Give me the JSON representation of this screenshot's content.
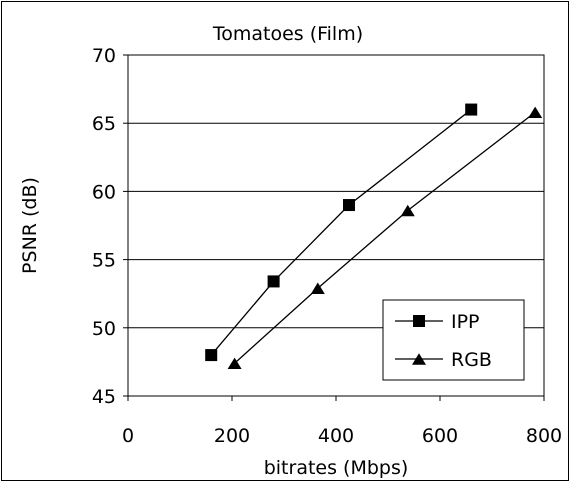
{
  "chart_data": {
    "type": "line",
    "title": "Tomatoes (Film)",
    "xlabel": "bitrates (Mbps)",
    "ylabel": "PSNR (dB)",
    "xlim": [
      0,
      800
    ],
    "ylim": [
      45,
      70
    ],
    "x_ticks": [
      "0",
      "200",
      "400",
      "600",
      "800"
    ],
    "y_ticks": [
      "45",
      "50",
      "55",
      "60",
      "65",
      "70"
    ],
    "grid": "horizontal",
    "legend_position": "bottom-right",
    "series": [
      {
        "name": "IPP",
        "marker": "square",
        "color": "#000000",
        "x": [
          160,
          280,
          425,
          660
        ],
        "y": [
          48.0,
          53.4,
          59.0,
          66.0
        ]
      },
      {
        "name": "RGB",
        "marker": "triangle",
        "color": "#000000",
        "x": [
          205,
          365,
          538,
          783
        ],
        "y": [
          47.4,
          52.9,
          58.6,
          65.8
        ]
      }
    ]
  }
}
